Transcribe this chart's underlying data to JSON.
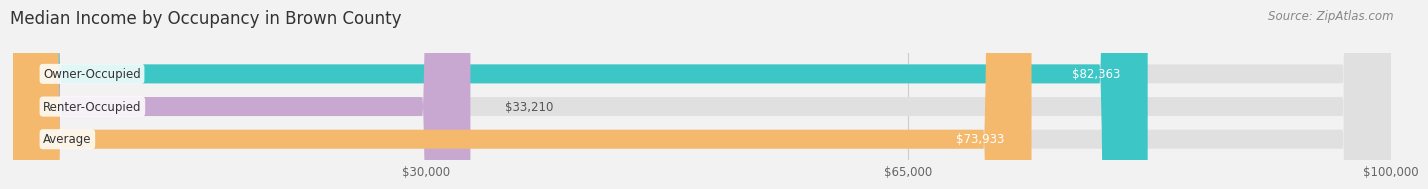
{
  "title": "Median Income by Occupancy in Brown County",
  "source": "Source: ZipAtlas.com",
  "categories": [
    "Owner-Occupied",
    "Renter-Occupied",
    "Average"
  ],
  "values": [
    82363,
    33210,
    73933
  ],
  "bar_colors": [
    "#3cc6c6",
    "#c8a8d0",
    "#f5b96e"
  ],
  "bar_labels": [
    "$82,363",
    "$33,210",
    "$73,933"
  ],
  "xlim": [
    0,
    100000
  ],
  "xticks": [
    30000,
    65000,
    100000
  ],
  "xticklabels": [
    "$30,000",
    "$65,000",
    "$100,000"
  ],
  "background_color": "#f2f2f2",
  "bar_bg_color": "#e0e0e0",
  "title_fontsize": 12,
  "source_fontsize": 8.5,
  "label_fontsize": 8.5,
  "category_fontsize": 8.5,
  "label_inside_threshold": 50000
}
